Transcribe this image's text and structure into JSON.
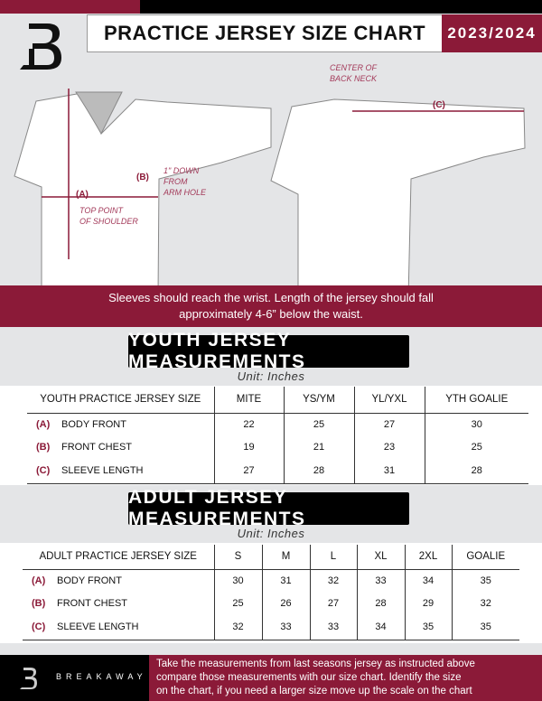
{
  "header": {
    "title": "PRACTICE JERSEY SIZE CHART",
    "season": "2023/2024",
    "logo": "B"
  },
  "diagram": {
    "label_a": "(A)",
    "note_a": [
      "TOP POINT",
      "OF SHOULDER"
    ],
    "label_b": "(B)",
    "note_b": [
      "1\" DOWN",
      "FROM",
      "ARM HOLE"
    ],
    "label_c": "(C)",
    "note_c": [
      "CENTER OF",
      "BACK NECK"
    ]
  },
  "banner": [
    "Sleeves should reach the wrist. Length of the jersey should fall",
    "approximately 4-6” below the waist."
  ],
  "youth": {
    "heading": "YOUTH JERSEY MEASUREMENTS",
    "unit": "Unit: Inches",
    "headers": [
      "YOUTH PRACTICE JERSEY SIZE",
      "MITE",
      "YS/YM",
      "YL/YXL",
      "YTH GOALIE"
    ],
    "rows": [
      {
        "key": "(A)",
        "label": "BODY FRONT",
        "values": [
          "22",
          "25",
          "27",
          "30"
        ]
      },
      {
        "key": "(B)",
        "label": "FRONT CHEST",
        "values": [
          "19",
          "21",
          "23",
          "25"
        ]
      },
      {
        "key": "(C)",
        "label": "SLEEVE LENGTH",
        "values": [
          "27",
          "28",
          "31",
          "28"
        ]
      }
    ]
  },
  "adult": {
    "heading": "ADULT JERSEY MEASUREMENTS",
    "unit": "Unit: Inches",
    "headers": [
      "ADULT PRACTICE JERSEY SIZE",
      "S",
      "M",
      "L",
      "XL",
      "2XL",
      "GOALIE"
    ],
    "rows": [
      {
        "key": "(A)",
        "label": "BODY FRONT",
        "values": [
          "30",
          "31",
          "32",
          "33",
          "34",
          "35"
        ]
      },
      {
        "key": "(B)",
        "label": "FRONT CHEST",
        "values": [
          "25",
          "26",
          "27",
          "28",
          "29",
          "32"
        ]
      },
      {
        "key": "(C)",
        "label": "SLEEVE LENGTH",
        "values": [
          "32",
          "33",
          "33",
          "34",
          "35",
          "35"
        ]
      }
    ]
  },
  "footer": {
    "brand": "BREAKAWAY",
    "text": [
      "Take the measurements from last seasons jersey as instructed above",
      "compare those measurements  with our size chart. Identify the size",
      "on the chart, if you need a larger size move up the scale on the chart"
    ]
  },
  "colors": {
    "accent": "#8b1a38",
    "black": "#000000",
    "background": "#e4e5e7"
  }
}
